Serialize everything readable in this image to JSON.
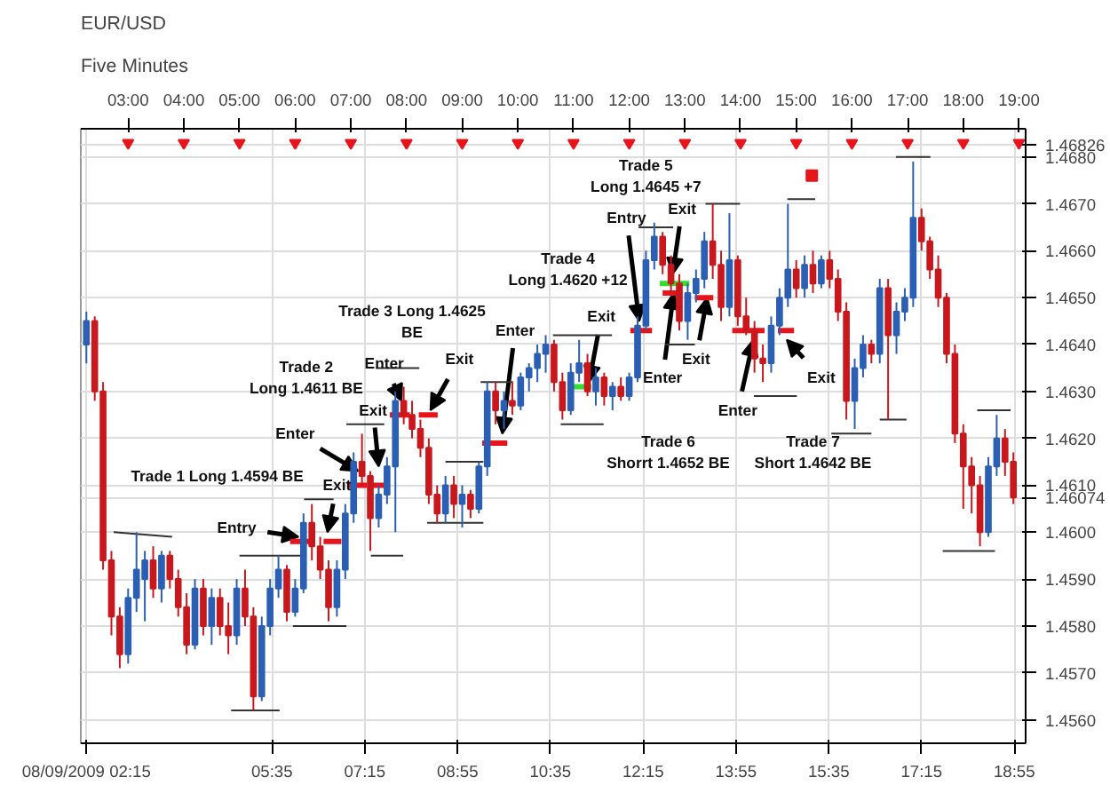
{
  "chart_data": {
    "type": "candlestick",
    "title": "EUR/USD",
    "subtitle": "Five Minutes",
    "x": [
      2.25,
      2.4,
      2.55,
      2.7,
      2.85,
      3.0,
      3.15,
      3.3,
      3.45,
      3.6,
      3.75,
      3.9,
      4.05,
      4.2,
      4.35,
      4.5,
      4.65,
      4.8,
      4.95,
      5.1,
      5.25,
      5.4,
      5.55,
      5.7,
      5.85,
      6.0,
      6.15,
      6.3,
      6.45,
      6.6,
      6.75,
      6.9,
      7.05,
      7.2,
      7.35,
      7.5,
      7.65,
      7.8,
      7.95,
      8.1,
      8.25,
      8.4,
      8.55,
      8.7,
      8.85,
      9.0,
      9.15,
      9.3,
      9.45,
      9.6,
      9.75,
      9.9,
      10.05,
      10.2,
      10.35,
      10.5,
      10.65,
      10.8,
      10.95,
      11.1,
      11.25,
      11.4,
      11.55,
      11.7,
      11.85,
      12.0,
      12.15,
      12.3,
      12.45,
      12.6,
      12.75,
      12.9,
      13.05,
      13.2,
      13.35,
      13.5,
      13.65,
      13.8,
      13.95,
      14.1,
      14.25,
      14.4,
      14.55,
      14.7,
      14.85,
      15.0,
      15.15,
      15.3,
      15.45,
      15.6,
      15.75,
      15.9,
      16.05,
      16.2,
      16.35,
      16.5,
      16.65,
      16.8,
      16.95,
      17.1,
      17.25,
      17.4,
      17.55,
      17.7,
      17.85,
      18.0,
      18.15,
      18.3,
      18.45,
      18.6,
      18.75,
      18.9
    ],
    "ohlc": [
      [
        1.464,
        1.4647,
        1.4636,
        1.4645
      ],
      [
        1.4645,
        1.4646,
        1.4628,
        1.463
      ],
      [
        1.463,
        1.4632,
        1.4592,
        1.4594
      ],
      [
        1.4594,
        1.4596,
        1.4578,
        1.4582
      ],
      [
        1.4582,
        1.4584,
        1.4571,
        1.4574
      ],
      [
        1.4574,
        1.4588,
        1.4572,
        1.4586
      ],
      [
        1.4586,
        1.46,
        1.4583,
        1.4592
      ],
      [
        1.459,
        1.4596,
        1.4581,
        1.4594
      ],
      [
        1.4594,
        1.4597,
        1.4586,
        1.4588
      ],
      [
        1.4588,
        1.4596,
        1.4585,
        1.4595
      ],
      [
        1.4595,
        1.4596,
        1.4588,
        1.459
      ],
      [
        1.459,
        1.4592,
        1.4582,
        1.4584
      ],
      [
        1.4584,
        1.4587,
        1.4574,
        1.4576
      ],
      [
        1.4576,
        1.459,
        1.4575,
        1.4588
      ],
      [
        1.4588,
        1.459,
        1.4578,
        1.458
      ],
      [
        1.458,
        1.4588,
        1.4576,
        1.4586
      ],
      [
        1.4586,
        1.4588,
        1.4578,
        1.458
      ],
      [
        1.458,
        1.4585,
        1.4574,
        1.4578
      ],
      [
        1.4578,
        1.459,
        1.4576,
        1.4588
      ],
      [
        1.4588,
        1.4592,
        1.458,
        1.4582
      ],
      [
        1.4582,
        1.4584,
        1.4562,
        1.4565
      ],
      [
        1.4565,
        1.4582,
        1.4564,
        1.458
      ],
      [
        1.458,
        1.459,
        1.4578,
        1.4588
      ],
      [
        1.4588,
        1.4595,
        1.4586,
        1.4592
      ],
      [
        1.4592,
        1.4593,
        1.4581,
        1.4583
      ],
      [
        1.4583,
        1.459,
        1.4582,
        1.4588
      ],
      [
        1.4588,
        1.4604,
        1.4587,
        1.4602
      ],
      [
        1.4602,
        1.4606,
        1.4594,
        1.4597
      ],
      [
        1.4597,
        1.4599,
        1.459,
        1.4592
      ],
      [
        1.4592,
        1.4594,
        1.4581,
        1.4584
      ],
      [
        1.4584,
        1.4594,
        1.4582,
        1.4592
      ],
      [
        1.4592,
        1.4606,
        1.459,
        1.4604
      ],
      [
        1.4604,
        1.4617,
        1.4602,
        1.4615
      ],
      [
        1.4615,
        1.4621,
        1.461,
        1.4612
      ],
      [
        1.4612,
        1.4613,
        1.4596,
        1.4603
      ],
      [
        1.4603,
        1.461,
        1.4601,
        1.4608
      ],
      [
        1.4608,
        1.4616,
        1.4606,
        1.4614
      ],
      [
        1.4614,
        1.463,
        1.46,
        1.4628
      ],
      [
        1.4628,
        1.4631,
        1.4623,
        1.4625
      ],
      [
        1.4625,
        1.4628,
        1.462,
        1.4622
      ],
      [
        1.4622,
        1.4624,
        1.4616,
        1.4618
      ],
      [
        1.4618,
        1.462,
        1.4606,
        1.4608
      ],
      [
        1.4608,
        1.461,
        1.4602,
        1.4604
      ],
      [
        1.4604,
        1.4612,
        1.4602,
        1.461
      ],
      [
        1.461,
        1.4612,
        1.4603,
        1.4606
      ],
      [
        1.4606,
        1.461,
        1.4601,
        1.4608
      ],
      [
        1.4608,
        1.4609,
        1.4603,
        1.4605
      ],
      [
        1.4605,
        1.4615,
        1.4604,
        1.4614
      ],
      [
        1.4614,
        1.4632,
        1.4612,
        1.463
      ],
      [
        1.463,
        1.4632,
        1.4623,
        1.4626
      ],
      [
        1.4626,
        1.463,
        1.4622,
        1.4628
      ],
      [
        1.4628,
        1.4632,
        1.4625,
        1.4627
      ],
      [
        1.4627,
        1.4634,
        1.4626,
        1.4633
      ],
      [
        1.4633,
        1.4636,
        1.463,
        1.4635
      ],
      [
        1.4635,
        1.464,
        1.4632,
        1.4638
      ],
      [
        1.4638,
        1.4642,
        1.4634,
        1.464
      ],
      [
        1.464,
        1.4641,
        1.463,
        1.4632
      ],
      [
        1.4632,
        1.4634,
        1.4624,
        1.4626
      ],
      [
        1.4626,
        1.4636,
        1.4625,
        1.4634
      ],
      [
        1.4634,
        1.4641,
        1.4632,
        1.4636
      ],
      [
        1.4636,
        1.4638,
        1.4629,
        1.463
      ],
      [
        1.463,
        1.4635,
        1.4627,
        1.4633
      ],
      [
        1.4633,
        1.4634,
        1.4627,
        1.4629
      ],
      [
        1.4629,
        1.4632,
        1.4626,
        1.4631
      ],
      [
        1.4631,
        1.4633,
        1.4628,
        1.4629
      ],
      [
        1.4629,
        1.4634,
        1.4628,
        1.4633
      ],
      [
        1.4633,
        1.4646,
        1.4632,
        1.4644
      ],
      [
        1.4644,
        1.466,
        1.4643,
        1.4658
      ],
      [
        1.4658,
        1.4666,
        1.4656,
        1.4663
      ],
      [
        1.4663,
        1.4664,
        1.4655,
        1.4657
      ],
      [
        1.4657,
        1.4659,
        1.4651,
        1.4653
      ],
      [
        1.4653,
        1.4655,
        1.4643,
        1.4645
      ],
      [
        1.4645,
        1.4653,
        1.4641,
        1.4651
      ],
      [
        1.4651,
        1.4656,
        1.4649,
        1.4654
      ],
      [
        1.4654,
        1.4664,
        1.4652,
        1.4662
      ],
      [
        1.4662,
        1.467,
        1.4654,
        1.4657
      ],
      [
        1.4657,
        1.466,
        1.4645,
        1.4648
      ],
      [
        1.4648,
        1.4668,
        1.4646,
        1.4658
      ],
      [
        1.4658,
        1.4659,
        1.4644,
        1.4646
      ],
      [
        1.4646,
        1.465,
        1.4642,
        1.4643
      ],
      [
        1.4643,
        1.4645,
        1.4634,
        1.4637
      ],
      [
        1.4637,
        1.464,
        1.4632,
        1.4636
      ],
      [
        1.4636,
        1.4646,
        1.4634,
        1.4644
      ],
      [
        1.4644,
        1.4652,
        1.4642,
        1.465
      ],
      [
        1.465,
        1.467,
        1.4648,
        1.4656
      ],
      [
        1.4656,
        1.4658,
        1.465,
        1.4652
      ],
      [
        1.4652,
        1.4659,
        1.465,
        1.4657
      ],
      [
        1.4657,
        1.466,
        1.4651,
        1.4653
      ],
      [
        1.4653,
        1.4659,
        1.4652,
        1.4658
      ],
      [
        1.4658,
        1.466,
        1.4652,
        1.4654
      ],
      [
        1.4654,
        1.4656,
        1.4645,
        1.4647
      ],
      [
        1.4647,
        1.4649,
        1.4624,
        1.4628
      ],
      [
        1.4628,
        1.4637,
        1.4622,
        1.4635
      ],
      [
        1.4635,
        1.4642,
        1.4633,
        1.464
      ],
      [
        1.464,
        1.4641,
        1.4636,
        1.4638
      ],
      [
        1.4638,
        1.4654,
        1.4636,
        1.4652
      ],
      [
        1.4652,
        1.4654,
        1.4624,
        1.4642
      ],
      [
        1.4642,
        1.4649,
        1.4638,
        1.4647
      ],
      [
        1.4647,
        1.4652,
        1.4645,
        1.465
      ],
      [
        1.465,
        1.4679,
        1.4648,
        1.4667
      ],
      [
        1.4667,
        1.4669,
        1.466,
        1.4662
      ],
      [
        1.4662,
        1.4663,
        1.4654,
        1.4656
      ],
      [
        1.4656,
        1.4659,
        1.4648,
        1.465
      ],
      [
        1.465,
        1.4651,
        1.4636,
        1.4638
      ],
      [
        1.4638,
        1.464,
        1.4619,
        1.4621
      ],
      [
        1.4621,
        1.4623,
        1.4605,
        1.4614
      ],
      [
        1.4614,
        1.4616,
        1.4604,
        1.461
      ],
      [
        1.461,
        1.4612,
        1.4597,
        1.46
      ],
      [
        1.46,
        1.4616,
        1.4599,
        1.4614
      ],
      [
        1.4614,
        1.4625,
        1.4612,
        1.462
      ],
      [
        1.462,
        1.4622,
        1.4612,
        1.4615
      ],
      [
        1.4615,
        1.4617,
        1.4606,
        1.46074
      ]
    ],
    "colors": [
      "#2b5fb4",
      "#c8181e",
      "#c8181e",
      "#c8181e",
      "#c8181e",
      "#2b5fb4",
      "#2b5fb4",
      "#2b5fb4",
      "#c8181e",
      "#2b5fb4",
      "#c8181e",
      "#c8181e",
      "#c8181e",
      "#2b5fb4",
      "#c8181e",
      "#2b5fb4",
      "#c8181e",
      "#c8181e",
      "#2b5fb4",
      "#c8181e",
      "#c8181e",
      "#2b5fb4",
      "#2b5fb4",
      "#2b5fb4",
      "#c8181e",
      "#2b5fb4",
      "#2b5fb4",
      "#c8181e",
      "#c8181e",
      "#c8181e",
      "#2b5fb4",
      "#2b5fb4",
      "#2b5fb4",
      "#c8181e",
      "#c8181e",
      "#2b5fb4",
      "#2b5fb4",
      "#2b5fb4",
      "#c8181e",
      "#c8181e",
      "#c8181e",
      "#c8181e",
      "#c8181e",
      "#2b5fb4",
      "#c8181e",
      "#2b5fb4",
      "#c8181e",
      "#2b5fb4",
      "#2b5fb4",
      "#c8181e",
      "#2b5fb4",
      "#c8181e",
      "#2b5fb4",
      "#2b5fb4",
      "#2b5fb4",
      "#2b5fb4",
      "#c8181e",
      "#c8181e",
      "#2b5fb4",
      "#2b5fb4",
      "#c8181e",
      "#2b5fb4",
      "#c8181e",
      "#2b5fb4",
      "#c8181e",
      "#2b5fb4",
      "#2b5fb4",
      "#2b5fb4",
      "#2b5fb4",
      "#c8181e",
      "#c8181e",
      "#c8181e",
      "#2b5fb4",
      "#2b5fb4",
      "#2b5fb4",
      "#c8181e",
      "#c8181e",
      "#2b5fb4",
      "#c8181e",
      "#c8181e",
      "#c8181e",
      "#c8181e",
      "#2b5fb4",
      "#2b5fb4",
      "#2b5fb4",
      "#c8181e",
      "#2b5fb4",
      "#c8181e",
      "#2b5fb4",
      "#c8181e",
      "#c8181e",
      "#c8181e",
      "#2b5fb4",
      "#2b5fb4",
      "#c8181e",
      "#2b5fb4",
      "#c8181e",
      "#2b5fb4",
      "#2b5fb4",
      "#2b5fb4",
      "#c8181e",
      "#c8181e",
      "#c8181e",
      "#c8181e",
      "#c8181e",
      "#c8181e",
      "#c8181e",
      "#c8181e",
      "#2b5fb4",
      "#2b5fb4",
      "#c8181e",
      "#c8181e"
    ],
    "series": [
      {
        "type": "line",
        "color": "#e8141c",
        "x": [
          5.91,
          6.35,
          null,
          6.51,
          6.83,
          null,
          6.95,
          7.29,
          null,
          7.33,
          7.63,
          null,
          7.7,
          8.06,
          null,
          8.22,
          8.56,
          null,
          9.36,
          9.81,
          null,
          12.02,
          12.41,
          null,
          12.6,
          12.94,
          null,
          13.18,
          13.51,
          null,
          13.85,
          14.43,
          null,
          14.67,
          14.96
        ],
        "values": [
          1.4598,
          1.4598,
          null,
          1.4598,
          1.4598,
          null,
          1.461,
          1.461,
          null,
          1.461,
          1.461,
          null,
          1.4625,
          1.4625,
          null,
          1.4625,
          1.4625,
          null,
          1.4619,
          1.4619,
          null,
          1.4643,
          1.4643,
          null,
          1.4651,
          1.4651,
          null,
          1.465,
          1.465,
          null,
          1.4643,
          1.4643,
          null,
          1.4643,
          1.4643
        ]
      },
      {
        "type": "line",
        "color": "#33dd33",
        "x": [
          10.97,
          11.32,
          null,
          12.55,
          13.08
        ],
        "values": [
          1.4631,
          1.4631,
          null,
          1.4653,
          1.4653
        ]
      },
      {
        "type": "line",
        "color": "#333333",
        "x": [
          2.74,
          3.79,
          null,
          5.0,
          6.11,
          null,
          4.85,
          5.72,
          null,
          6.16,
          6.69,
          null,
          5.96,
          6.92,
          null,
          6.92,
          7.6,
          null,
          7.36,
          7.94,
          null,
          7.45,
          8.23,
          null,
          8.7,
          9.38,
          null,
          8.37,
          9.38,
          null,
          9.33,
          9.91,
          null,
          10.63,
          11.69,
          null,
          10.77,
          11.54,
          null,
          12.17,
          12.79,
          null,
          12.65,
          13.18,
          null,
          13.37,
          13.99,
          null,
          14.84,
          15.34,
          null,
          14.24,
          15.01,
          null,
          15.63,
          16.35,
          null,
          16.5,
          16.98,
          null,
          16.79,
          17.41,
          null,
          17.63,
          18.57,
          null,
          18.25,
          18.85
        ],
        "values": [
          1.46,
          1.4599,
          null,
          1.4595,
          1.4595,
          null,
          1.4562,
          1.4562,
          null,
          1.4607,
          1.4607,
          null,
          1.458,
          1.458,
          null,
          1.4623,
          1.4623,
          null,
          1.4595,
          1.4595,
          null,
          1.4635,
          1.4635,
          null,
          1.4615,
          1.4615,
          null,
          1.4602,
          1.4602,
          null,
          1.4632,
          1.4632,
          null,
          1.4642,
          1.4642,
          null,
          1.4623,
          1.4623,
          null,
          1.4665,
          1.4665,
          null,
          1.464,
          1.464,
          null,
          1.467,
          1.467,
          null,
          1.4671,
          1.4671,
          null,
          1.4629,
          1.4629,
          null,
          1.4621,
          1.4621,
          null,
          1.4624,
          1.4624,
          null,
          1.468,
          1.468,
          null,
          1.4596,
          1.4596,
          null,
          1.4626,
          1.4626
        ]
      },
      {
        "type": "scatter",
        "marker": "square",
        "color": "#e8141c",
        "x": [
          15.28
        ],
        "values": [
          1.4676
        ]
      },
      {
        "type": "scatter",
        "marker": "triangle",
        "color": "#e8141c",
        "x": [
          3,
          4,
          5,
          6,
          7,
          8,
          9,
          10,
          11,
          12,
          13,
          14,
          15,
          16,
          17,
          18,
          19
        ],
        "values": [
          1.4683,
          1.4683,
          1.4683,
          1.4683,
          1.4683,
          1.4683,
          1.4683,
          1.4683,
          1.4683,
          1.4683,
          1.4683,
          1.4683,
          1.4683,
          1.4683,
          1.4683,
          1.4683,
          1.4683
        ]
      }
    ],
    "annotations": [
      "Trade 1 Long 1.4594 BE",
      {
        "text": "Entry",
        "x": 6.06,
        "y": 1.4599
      },
      {
        "text": "Exit",
        "x": 6.58,
        "y": 1.46
      },
      "Trade 2\nLong 1.4611 BE",
      {
        "text": "Enter",
        "x": 7.13,
        "y": 1.4613
      },
      {
        "text": "Exit",
        "x": 7.5,
        "y": 1.4614
      },
      "Trade 3 Long 1.4625\nBE",
      {
        "text": "Enter",
        "x": 7.91,
        "y": 1.4628
      },
      {
        "text": "Exit",
        "x": 8.43,
        "y": 1.4626
      },
      {
        "text": "Enter",
        "x": 9.72,
        "y": 1.4621
      },
      "Trade 4\nLong 1.4620 +12",
      {
        "text": "Exit",
        "x": 11.28,
        "y": 1.4632
      },
      {
        "text": "Entry",
        "x": 12.18,
        "y": 1.4645
      },
      "Trade 5\nLong 1.4645 +7",
      {
        "text": "Exit",
        "x": 12.78,
        "y": 1.4655
      },
      {
        "text": "Enter",
        "x": 12.8,
        "y": 1.4651
      },
      {
        "text": "Exit",
        "x": 13.4,
        "y": 1.465
      },
      "Trade 6\nShorrt 1.4652 BE",
      {
        "text": "Enter",
        "x": 14.23,
        "y": 1.4641
      },
      {
        "text": "Exit",
        "x": 14.83,
        "y": 1.4641
      },
      "Trade 7\nShort 1.4642 BE"
    ],
    "xlim": [
      2.15,
      19.12
    ],
    "xticks": [
      {
        "value": 2.25,
        "label": "08/09/2009 02:15"
      },
      {
        "value": 5.5833,
        "label": "05:35"
      },
      {
        "value": 7.25,
        "label": "07:15"
      },
      {
        "value": 8.9167,
        "label": "08:55"
      },
      {
        "value": 10.5833,
        "label": "10:35"
      },
      {
        "value": 12.25,
        "label": "12:15"
      },
      {
        "value": 13.9167,
        "label": "13:55"
      },
      {
        "value": 15.5833,
        "label": "15:35"
      },
      {
        "value": 17.25,
        "label": "17:15"
      },
      {
        "value": 18.9167,
        "label": "18:55"
      }
    ],
    "x2lim": [
      2.15,
      19.12
    ],
    "x2ticks": [
      {
        "value": 3,
        "label": "03:00"
      },
      {
        "value": 4,
        "label": "04:00"
      },
      {
        "value": 5,
        "label": "05:00"
      },
      {
        "value": 6,
        "label": "06:00"
      },
      {
        "value": 7,
        "label": "07:00"
      },
      {
        "value": 8,
        "label": "08:00"
      },
      {
        "value": 9,
        "label": "09:00"
      },
      {
        "value": 10,
        "label": "10:00"
      },
      {
        "value": 11,
        "label": "11:00"
      },
      {
        "value": 12,
        "label": "12:00"
      },
      {
        "value": 13,
        "label": "13:00"
      },
      {
        "value": 14,
        "label": "14:00"
      },
      {
        "value": 15,
        "label": "15:00"
      },
      {
        "value": 16,
        "label": "16:00"
      },
      {
        "value": 17,
        "label": "17:00"
      },
      {
        "value": 18,
        "label": "18:00"
      },
      {
        "value": 19,
        "label": "19:00"
      }
    ],
    "ylim": [
      1.4555,
      1.4686
    ],
    "yticks": [
      {
        "value": 1.456,
        "label": "1.4560"
      },
      {
        "value": 1.457,
        "label": "1.4570"
      },
      {
        "value": 1.458,
        "label": "1.4580"
      },
      {
        "value": 1.459,
        "label": "1.4590"
      },
      {
        "value": 1.46,
        "label": "1.4600"
      },
      {
        "value": 1.46074,
        "label": "1.46074"
      },
      {
        "value": 1.461,
        "label": "1.4610"
      },
      {
        "value": 1.462,
        "label": "1.4620"
      },
      {
        "value": 1.463,
        "label": "1.4630"
      },
      {
        "value": 1.464,
        "label": "1.4640"
      },
      {
        "value": 1.465,
        "label": "1.4650"
      },
      {
        "value": 1.466,
        "label": "1.4660"
      },
      {
        "value": 1.467,
        "label": "1.4670"
      },
      {
        "value": 1.468,
        "label": "1.4680"
      },
      {
        "value": 1.46826,
        "label": "1.46826"
      }
    ],
    "grid": true
  }
}
